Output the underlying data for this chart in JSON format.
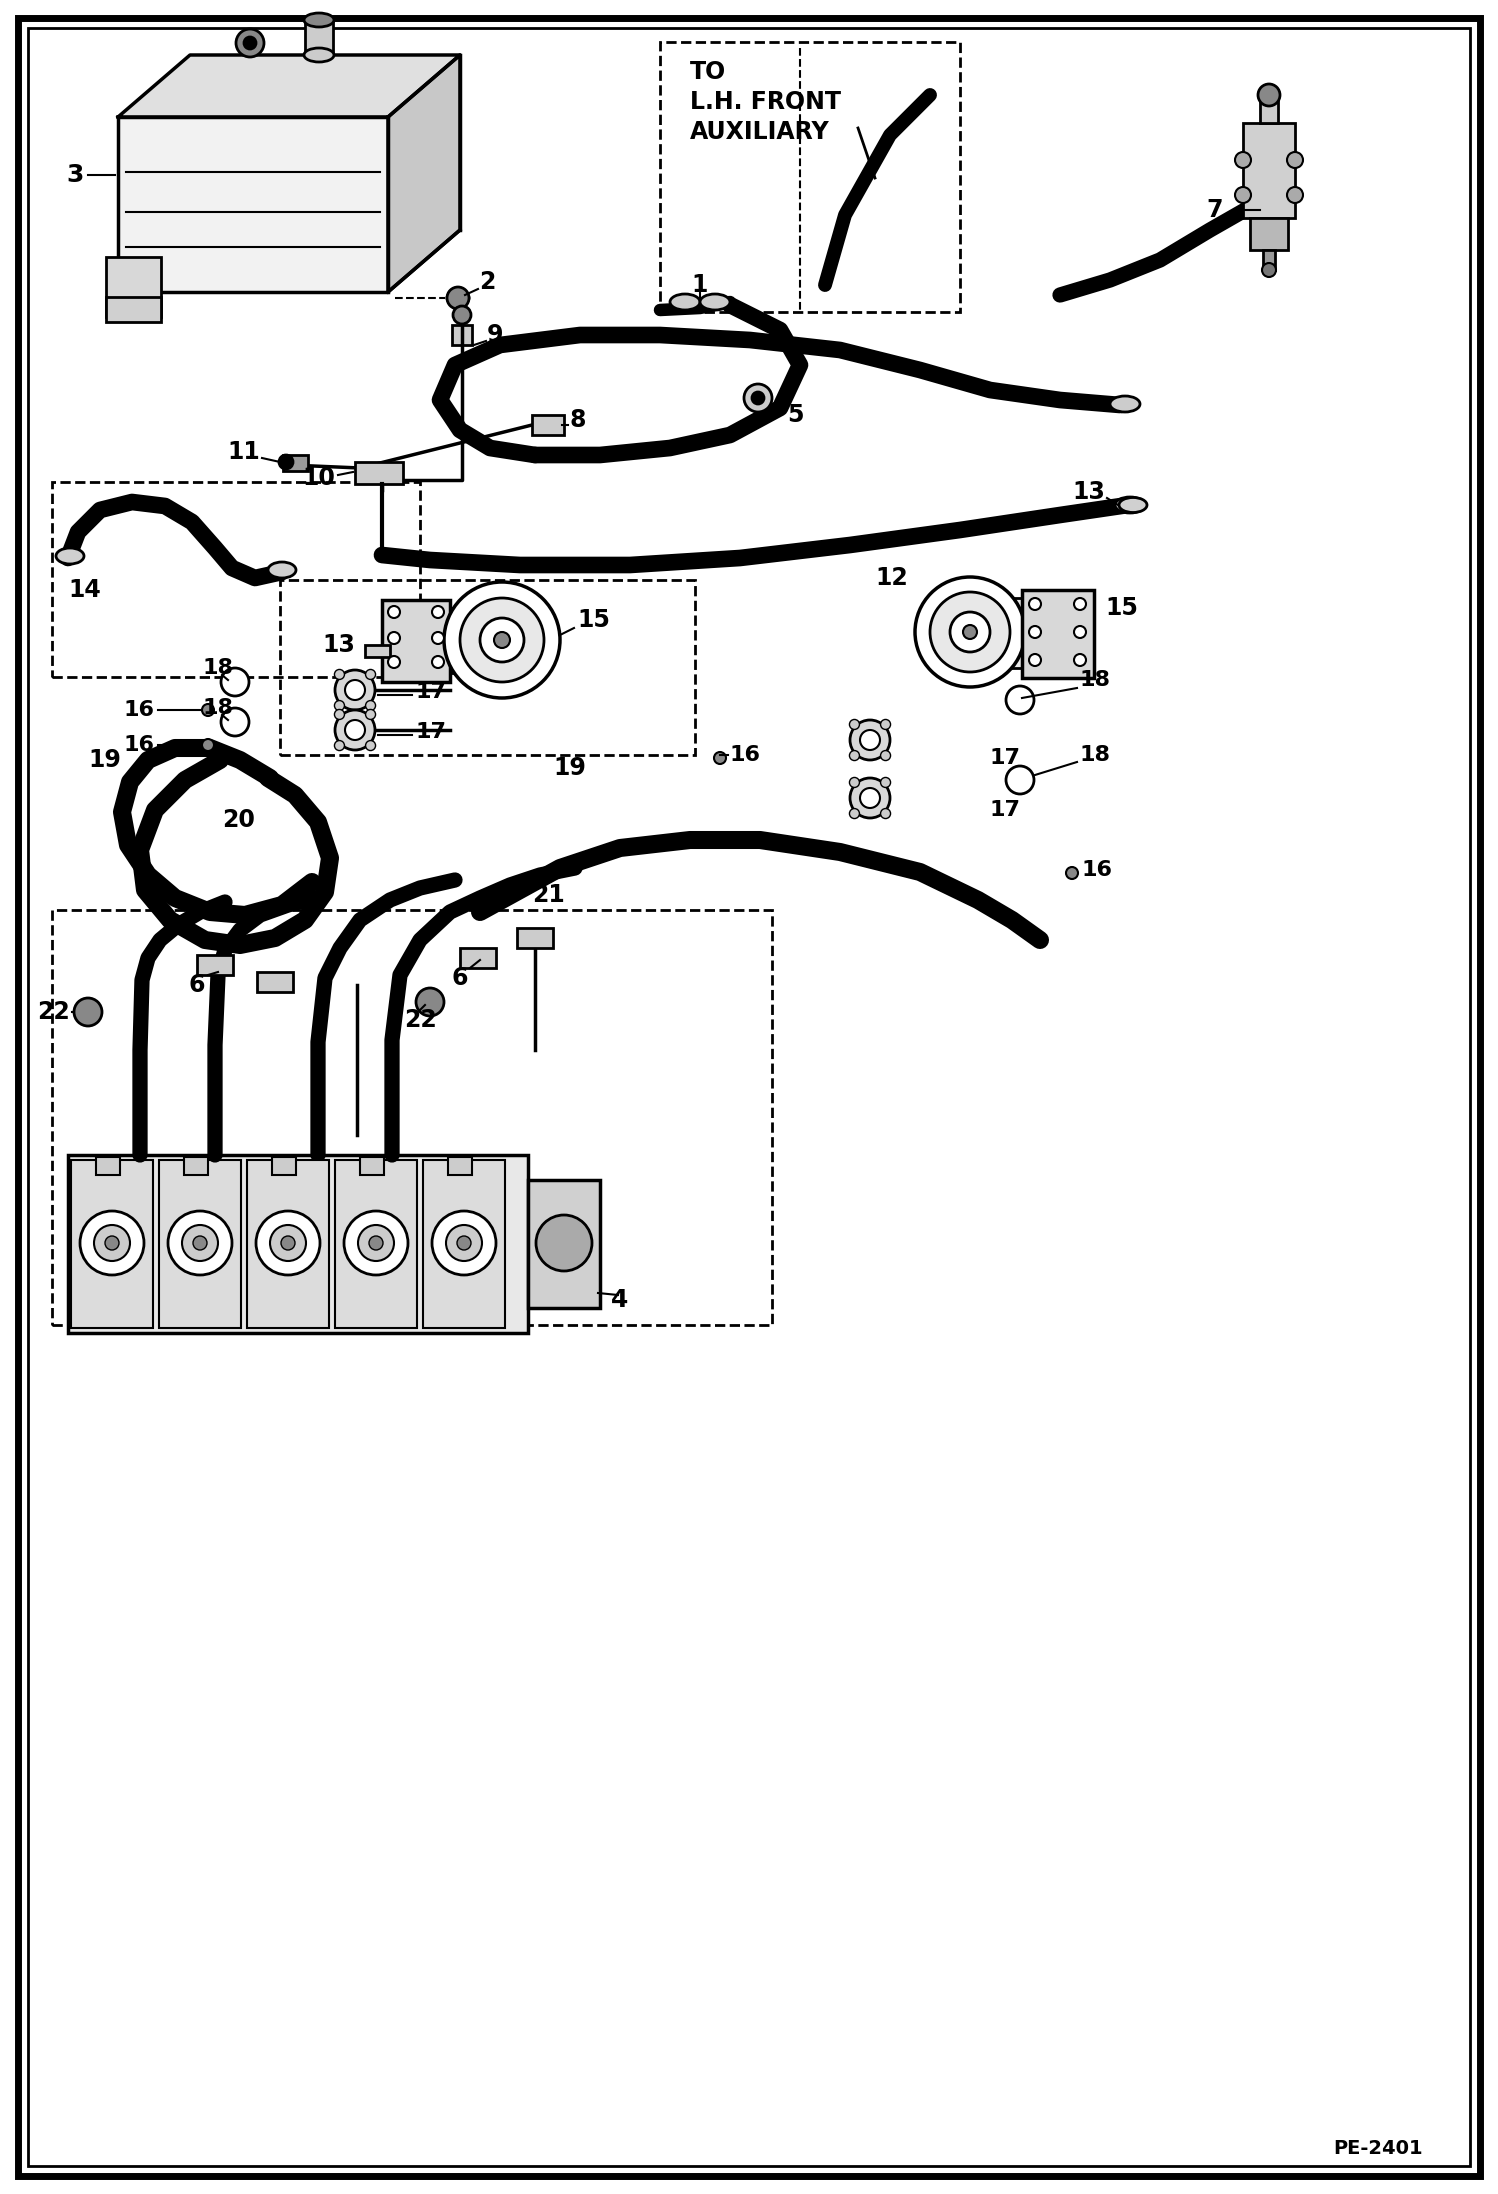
{
  "background_color": "#ffffff",
  "border_color": "#000000",
  "watermark": "PE-2401",
  "title_text": "TO\nL.H. FRONT\nAUXILIARY"
}
